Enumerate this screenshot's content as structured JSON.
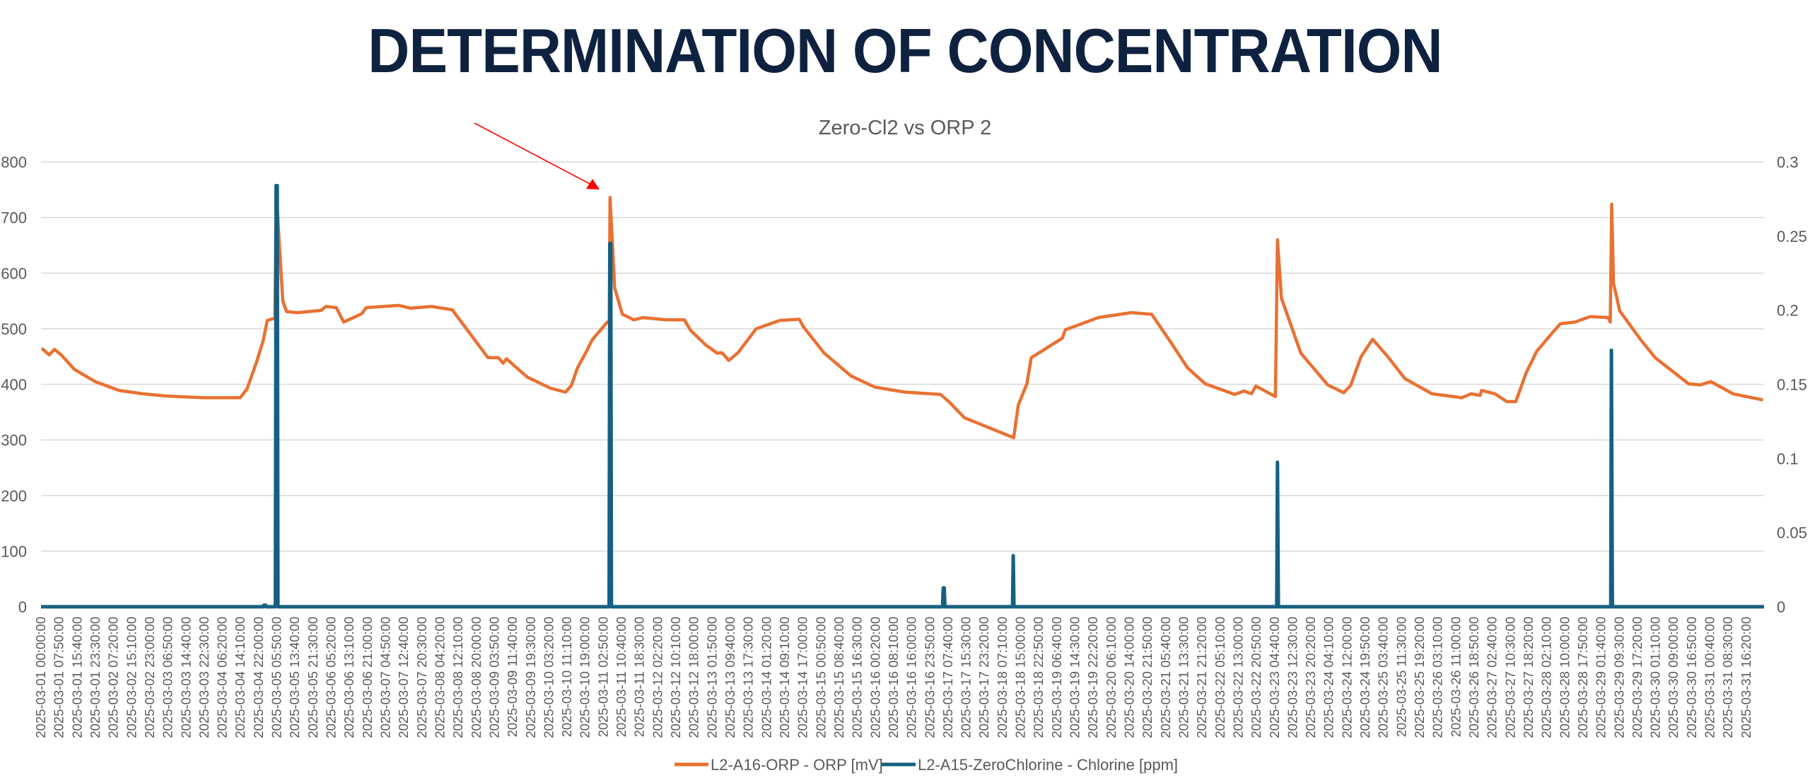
{
  "slide": {
    "title": "DETERMINATION OF CONCENTRATION"
  },
  "chart_data": {
    "type": "line",
    "title": "Zero-Cl2 vs ORP 2",
    "colors": {
      "orp": "#e97132",
      "chlorine": "#156082",
      "arrow": "#ff0000",
      "grid": "#d9d9d9"
    },
    "y_left": {
      "range": [
        0,
        800
      ],
      "ticks": [
        "0",
        "100",
        "200",
        "300",
        "400",
        "500",
        "600",
        "700",
        "800"
      ]
    },
    "y_right": {
      "range": [
        0,
        0.3
      ],
      "ticks": [
        "0",
        "0.05",
        "0.1",
        "0.15",
        "0.2",
        "0.25",
        "0.3"
      ]
    },
    "x_hours_range": [
      0,
      744
    ],
    "x_tick_step_hours": 7.8333,
    "x_ticks": [
      "2025-03-01 00:00:00",
      "2025-03-01 07:50:00",
      "2025-03-01 15:40:00",
      "2025-03-01 23:30:00",
      "2025-03-02 07:20:00",
      "2025-03-02 15:10:00",
      "2025-03-02 23:00:00",
      "2025-03-03 06:50:00",
      "2025-03-03 14:40:00",
      "2025-03-03 22:30:00",
      "2025-03-04 06:20:00",
      "2025-03-04 14:10:00",
      "2025-03-04 22:00:00",
      "2025-03-05 05:50:00",
      "2025-03-05 13:40:00",
      "2025-03-05 21:30:00",
      "2025-03-06 05:20:00",
      "2025-03-06 13:10:00",
      "2025-03-06 21:00:00",
      "2025-03-07 04:50:00",
      "2025-03-07 12:40:00",
      "2025-03-07 20:30:00",
      "2025-03-08 04:20:00",
      "2025-03-08 12:10:00",
      "2025-03-08 20:00:00",
      "2025-03-09 03:50:00",
      "2025-03-09 11:40:00",
      "2025-03-09 19:30:00",
      "2025-03-10 03:20:00",
      "2025-03-10 11:10:00",
      "2025-03-10 19:00:00",
      "2025-03-11 02:50:00",
      "2025-03-11 10:40:00",
      "2025-03-11 18:30:00",
      "2025-03-12 02:20:00",
      "2025-03-12 10:10:00",
      "2025-03-12 18:00:00",
      "2025-03-13 01:50:00",
      "2025-03-13 09:40:00",
      "2025-03-13 17:30:00",
      "2025-03-14 01:20:00",
      "2025-03-14 09:10:00",
      "2025-03-14 17:00:00",
      "2025-03-15 00:50:00",
      "2025-03-15 08:40:00",
      "2025-03-15 16:30:00",
      "2025-03-16 00:20:00",
      "2025-03-16 08:10:00",
      "2025-03-16 16:00:00",
      "2025-03-16 23:50:00",
      "2025-03-17 07:40:00",
      "2025-03-17 15:30:00",
      "2025-03-17 23:20:00",
      "2025-03-18 07:10:00",
      "2025-03-18 15:00:00",
      "2025-03-18 22:50:00",
      "2025-03-19 06:40:00",
      "2025-03-19 14:30:00",
      "2025-03-19 22:20:00",
      "2025-03-20 06:10:00",
      "2025-03-20 14:00:00",
      "2025-03-20 21:50:00",
      "2025-03-21 05:40:00",
      "2025-03-21 13:30:00",
      "2025-03-21 21:20:00",
      "2025-03-22 05:10:00",
      "2025-03-22 13:00:00",
      "2025-03-22 20:50:00",
      "2025-03-23 04:40:00",
      "2025-03-23 12:30:00",
      "2025-03-23 20:20:00",
      "2025-03-24 04:10:00",
      "2025-03-24 12:00:00",
      "2025-03-24 19:50:00",
      "2025-03-25 03:40:00",
      "2025-03-25 11:30:00",
      "2025-03-25 19:20:00",
      "2025-03-26 03:10:00",
      "2025-03-26 11:00:00",
      "2025-03-26 18:50:00",
      "2025-03-27 02:40:00",
      "2025-03-27 10:30:00",
      "2025-03-27 18:20:00",
      "2025-03-28 02:10:00",
      "2025-03-28 10:00:00",
      "2025-03-28 17:50:00",
      "2025-03-29 01:40:00",
      "2025-03-29 09:30:00",
      "2025-03-29 17:20:00",
      "2025-03-30 01:10:00",
      "2025-03-30 09:00:00",
      "2025-03-30 16:50:00",
      "2025-03-31 00:40:00",
      "2025-03-31 08:30:00",
      "2025-03-31 16:20:00"
    ],
    "legend_position": "bottom",
    "series": [
      {
        "name": "L2-A16-ORP - ORP [mV]",
        "axis": "left",
        "points": [
          [
            0.3,
            465
          ],
          [
            3.5,
            453
          ],
          [
            5.8,
            463
          ],
          [
            8.7,
            453
          ],
          [
            14.4,
            427
          ],
          [
            23.4,
            405
          ],
          [
            33.7,
            389
          ],
          [
            44,
            383
          ],
          [
            54,
            379
          ],
          [
            70,
            376
          ],
          [
            86,
            376
          ],
          [
            89,
            392
          ],
          [
            93,
            439
          ],
          [
            96,
            480
          ],
          [
            97.7,
            515
          ],
          [
            101,
            519
          ],
          [
            101.6,
            753
          ],
          [
            102.7,
            666
          ],
          [
            104.4,
            550
          ],
          [
            106,
            531
          ],
          [
            110.8,
            529
          ],
          [
            121,
            533
          ],
          [
            123,
            540
          ],
          [
            127.5,
            538
          ],
          [
            130.7,
            512
          ],
          [
            138.5,
            527
          ],
          [
            140.4,
            538
          ],
          [
            154.5,
            542
          ],
          [
            159.6,
            537
          ],
          [
            168.6,
            540
          ],
          [
            177.6,
            534
          ],
          [
            181.5,
            512
          ],
          [
            193,
            448
          ],
          [
            197.5,
            448
          ],
          [
            199.5,
            438
          ],
          [
            201,
            446
          ],
          [
            205,
            431
          ],
          [
            210,
            413
          ],
          [
            220,
            393
          ],
          [
            226.5,
            386
          ],
          [
            229,
            398
          ],
          [
            231.7,
            430
          ],
          [
            235.5,
            459
          ],
          [
            238,
            480
          ],
          [
            244.5,
            512
          ],
          [
            245.4,
            512
          ],
          [
            245.7,
            736
          ],
          [
            247.7,
            573
          ],
          [
            251,
            526
          ],
          [
            256,
            516
          ],
          [
            260,
            520
          ],
          [
            270,
            516
          ],
          [
            277.8,
            516
          ],
          [
            280.5,
            497
          ],
          [
            287,
            471
          ],
          [
            292,
            456
          ],
          [
            294,
            457
          ],
          [
            297,
            443
          ],
          [
            301,
            457
          ],
          [
            308.8,
            500
          ],
          [
            319,
            515
          ],
          [
            327.4,
            517
          ],
          [
            329.3,
            503
          ],
          [
            338.2,
            456
          ],
          [
            349.8,
            415
          ],
          [
            360,
            395
          ],
          [
            373,
            386
          ],
          [
            388.4,
            382
          ],
          [
            392,
            369
          ],
          [
            398.7,
            340
          ],
          [
            420,
            304
          ],
          [
            422,
            363
          ],
          [
            425.7,
            401
          ],
          [
            427.6,
            448
          ],
          [
            441,
            483
          ],
          [
            442.3,
            498
          ],
          [
            456.5,
            520
          ],
          [
            470.7,
            529
          ],
          [
            479.6,
            526
          ],
          [
            488.6,
            471
          ],
          [
            495,
            430
          ],
          [
            502.7,
            401
          ],
          [
            515.5,
            382
          ],
          [
            519.5,
            388
          ],
          [
            522.7,
            383
          ],
          [
            524.6,
            397
          ],
          [
            533,
            378
          ],
          [
            533.9,
            660
          ],
          [
            535.6,
            555
          ],
          [
            544,
            456
          ],
          [
            555.6,
            399
          ],
          [
            562.5,
            385
          ],
          [
            565.5,
            398
          ],
          [
            570,
            450
          ],
          [
            575,
            481
          ],
          [
            581.5,
            450
          ],
          [
            589,
            410
          ],
          [
            600.7,
            383
          ],
          [
            613.5,
            376
          ],
          [
            617.5,
            383
          ],
          [
            621.4,
            380
          ],
          [
            622,
            389
          ],
          [
            627.8,
            383
          ],
          [
            632.9,
            369
          ],
          [
            636.8,
            369
          ],
          [
            641.3,
            421
          ],
          [
            645.8,
            459
          ],
          [
            651,
            485
          ],
          [
            656,
            509
          ],
          [
            662.4,
            512
          ],
          [
            669,
            522
          ],
          [
            676.7,
            520
          ],
          [
            677.6,
            512
          ],
          [
            678.2,
            724
          ],
          [
            679,
            582
          ],
          [
            681.7,
            532
          ],
          [
            690.8,
            480
          ],
          [
            697,
            448
          ],
          [
            711.4,
            401
          ],
          [
            716.5,
            399
          ],
          [
            721,
            405
          ],
          [
            730.6,
            383
          ],
          [
            743.5,
            372
          ]
        ]
      },
      {
        "name": "L2-A15-ZeroChlorine - Chlorine [ppm]",
        "axis": "right",
        "points": [
          [
            0,
            0
          ],
          [
            96,
            0
          ],
          [
            96.2,
            0.001
          ],
          [
            97,
            0.001
          ],
          [
            97.2,
            0
          ],
          [
            101.2,
            0
          ],
          [
            101.5,
            0.284
          ],
          [
            102,
            0.284
          ],
          [
            102.3,
            0
          ],
          [
            245.3,
            0
          ],
          [
            245.6,
            0.245
          ],
          [
            246,
            0.245
          ],
          [
            246.3,
            0
          ],
          [
            389.3,
            0
          ],
          [
            389.6,
            0.0127
          ],
          [
            390,
            0.0127
          ],
          [
            390.3,
            0
          ],
          [
            419.5,
            0
          ],
          [
            419.8,
            0.0345
          ],
          [
            420.1,
            0
          ],
          [
            533.6,
            0
          ],
          [
            533.9,
            0.0975
          ],
          [
            534.3,
            0
          ],
          [
            677.8,
            0
          ],
          [
            678.1,
            0.173
          ],
          [
            678.5,
            0
          ],
          [
            744,
            0
          ]
        ]
      }
    ],
    "annotation": {
      "type": "arrow",
      "points_to_hours": 245.7
    }
  }
}
